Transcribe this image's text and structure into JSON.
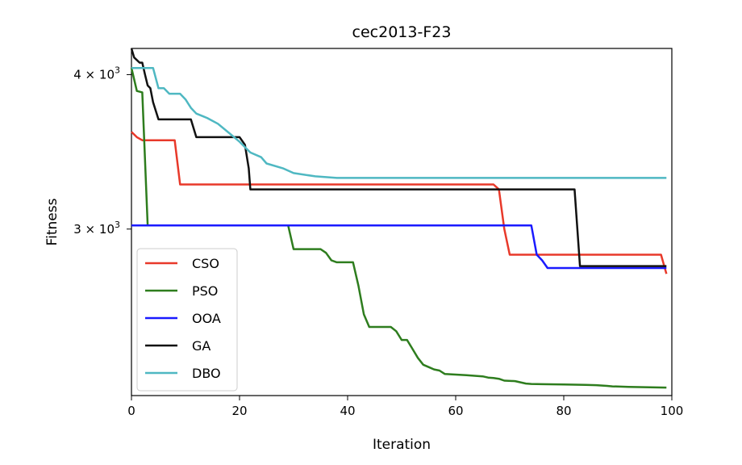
{
  "chart_data": {
    "type": "line",
    "title": "cec2013-F23",
    "xlabel": "Iteration",
    "ylabel": "Fitness",
    "xlim": [
      0,
      100
    ],
    "ylim": [
      2200,
      4200
    ],
    "yscale": "log",
    "xticks": [
      0,
      20,
      40,
      60,
      80,
      100
    ],
    "xtick_labels": [
      "0",
      "20",
      "40",
      "60",
      "80",
      "100"
    ],
    "yticks": [
      {
        "value": 4000,
        "label_base": "4 × 10",
        "label_exp": "3"
      },
      {
        "value": 3000,
        "label_base": "3 × 10",
        "label_exp": "3"
      }
    ],
    "legend": {
      "position": "lower-left"
    },
    "series": [
      {
        "name": "CSO",
        "color": "#e8392a",
        "points": [
          [
            0,
            3595
          ],
          [
            1,
            3560
          ],
          [
            2,
            3540
          ],
          [
            8,
            3540
          ],
          [
            9,
            3260
          ],
          [
            67,
            3260
          ],
          [
            68,
            3230
          ],
          [
            69,
            3000
          ],
          [
            70,
            2860
          ],
          [
            98,
            2860
          ],
          [
            99,
            2760
          ]
        ]
      },
      {
        "name": "PSO",
        "color": "#2e7d1e",
        "points": [
          [
            0,
            4050
          ],
          [
            1,
            3880
          ],
          [
            2,
            3870
          ],
          [
            3,
            3020
          ],
          [
            29,
            3020
          ],
          [
            30,
            2890
          ],
          [
            35,
            2890
          ],
          [
            36,
            2870
          ],
          [
            37,
            2830
          ],
          [
            38,
            2820
          ],
          [
            41,
            2820
          ],
          [
            42,
            2700
          ],
          [
            43,
            2560
          ],
          [
            44,
            2500
          ],
          [
            48,
            2500
          ],
          [
            49,
            2480
          ],
          [
            50,
            2440
          ],
          [
            51,
            2440
          ],
          [
            52,
            2400
          ],
          [
            53,
            2360
          ],
          [
            54,
            2330
          ],
          [
            55,
            2320
          ],
          [
            56,
            2310
          ],
          [
            57,
            2305
          ],
          [
            58,
            2290
          ],
          [
            62,
            2285
          ],
          [
            65,
            2280
          ],
          [
            66,
            2275
          ],
          [
            67,
            2273
          ],
          [
            68,
            2270
          ],
          [
            69,
            2262
          ],
          [
            71,
            2260
          ],
          [
            72,
            2255
          ],
          [
            73,
            2250
          ],
          [
            74,
            2248
          ],
          [
            76,
            2247
          ],
          [
            80,
            2246
          ],
          [
            82,
            2245
          ],
          [
            84,
            2244
          ],
          [
            86,
            2243
          ],
          [
            88,
            2240
          ],
          [
            89,
            2238
          ],
          [
            92,
            2236
          ],
          [
            99,
            2233
          ]
        ]
      },
      {
        "name": "OOA",
        "color": "#1a1aff",
        "points": [
          [
            0,
            3020
          ],
          [
            74,
            3020
          ],
          [
            75,
            2860
          ],
          [
            76,
            2830
          ],
          [
            77,
            2790
          ],
          [
            99,
            2790
          ]
        ]
      },
      {
        "name": "GA",
        "color": "#111111",
        "points": [
          [
            0,
            4200
          ],
          [
            0.5,
            4130
          ],
          [
            1.5,
            4090
          ],
          [
            2,
            4090
          ],
          [
            2.5,
            4000
          ],
          [
            3,
            3920
          ],
          [
            3.5,
            3900
          ],
          [
            4,
            3800
          ],
          [
            5,
            3680
          ],
          [
            11,
            3680
          ],
          [
            12,
            3560
          ],
          [
            20,
            3560
          ],
          [
            21,
            3510
          ],
          [
            21.7,
            3360
          ],
          [
            22,
            3230
          ],
          [
            82,
            3230
          ],
          [
            83,
            2800
          ],
          [
            99,
            2800
          ]
        ]
      },
      {
        "name": "DBO",
        "color": "#4fb8c2",
        "points": [
          [
            0,
            4050
          ],
          [
            4,
            4050
          ],
          [
            5,
            3900
          ],
          [
            6,
            3900
          ],
          [
            7,
            3860
          ],
          [
            9,
            3860
          ],
          [
            10,
            3820
          ],
          [
            11,
            3760
          ],
          [
            12,
            3720
          ],
          [
            14,
            3690
          ],
          [
            16,
            3650
          ],
          [
            18,
            3590
          ],
          [
            20,
            3530
          ],
          [
            22,
            3460
          ],
          [
            24,
            3430
          ],
          [
            25,
            3390
          ],
          [
            28,
            3360
          ],
          [
            30,
            3330
          ],
          [
            34,
            3310
          ],
          [
            38,
            3300
          ],
          [
            99,
            3300
          ]
        ]
      }
    ]
  }
}
